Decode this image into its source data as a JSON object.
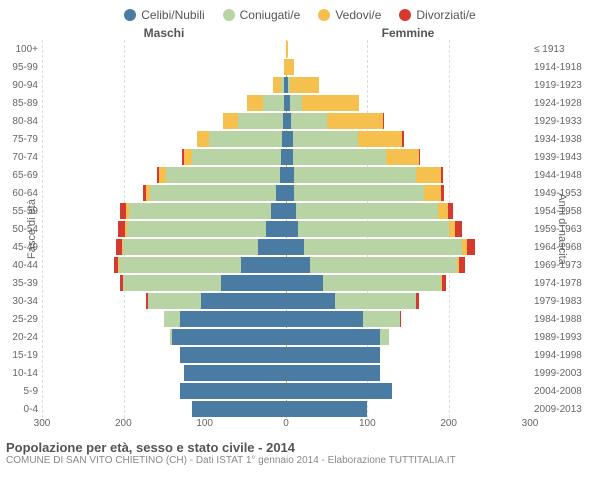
{
  "legend": [
    {
      "label": "Celibi/Nubili",
      "color": "#4a7ca3"
    },
    {
      "label": "Coniugati/e",
      "color": "#b8d4a5"
    },
    {
      "label": "Vedovi/e",
      "color": "#f5c04e"
    },
    {
      "label": "Divorziati/e",
      "color": "#d63a2e"
    }
  ],
  "header": {
    "male": "Maschi",
    "female": "Femmine"
  },
  "axis": {
    "left_label": "Fasce di età",
    "right_label": "Anni di nascita",
    "x_max": 300,
    "x_ticks": [
      300,
      200,
      100,
      0,
      100,
      200,
      300
    ]
  },
  "colors": {
    "celibi": "#4a7ca3",
    "coniugati": "#b8d4a5",
    "vedovi": "#f5c04e",
    "divorziati": "#d63a2e",
    "grid": "#dddddd",
    "center": "#f5a623",
    "bg": "#ffffff"
  },
  "rows": [
    {
      "age": "100+",
      "year": "≤ 1913",
      "m": {
        "c": 0,
        "g": 0,
        "v": 0,
        "d": 0
      },
      "f": {
        "c": 0,
        "g": 0,
        "v": 2,
        "d": 0
      }
    },
    {
      "age": "95-99",
      "year": "1914-1918",
      "m": {
        "c": 0,
        "g": 0,
        "v": 3,
        "d": 0
      },
      "f": {
        "c": 0,
        "g": 0,
        "v": 10,
        "d": 0
      }
    },
    {
      "age": "90-94",
      "year": "1919-1923",
      "m": {
        "c": 2,
        "g": 4,
        "v": 10,
        "d": 0
      },
      "f": {
        "c": 3,
        "g": 2,
        "v": 35,
        "d": 0
      }
    },
    {
      "age": "85-89",
      "year": "1924-1928",
      "m": {
        "c": 3,
        "g": 25,
        "v": 20,
        "d": 0
      },
      "f": {
        "c": 5,
        "g": 15,
        "v": 70,
        "d": 0
      }
    },
    {
      "age": "80-84",
      "year": "1929-1933",
      "m": {
        "c": 4,
        "g": 55,
        "v": 18,
        "d": 0
      },
      "f": {
        "c": 6,
        "g": 45,
        "v": 68,
        "d": 2
      }
    },
    {
      "age": "75-79",
      "year": "1934-1938",
      "m": {
        "c": 5,
        "g": 90,
        "v": 15,
        "d": 0
      },
      "f": {
        "c": 8,
        "g": 80,
        "v": 55,
        "d": 2
      }
    },
    {
      "age": "70-74",
      "year": "1939-1943",
      "m": {
        "c": 6,
        "g": 110,
        "v": 10,
        "d": 2
      },
      "f": {
        "c": 8,
        "g": 115,
        "v": 40,
        "d": 2
      }
    },
    {
      "age": "65-69",
      "year": "1944-1948",
      "m": {
        "c": 8,
        "g": 140,
        "v": 8,
        "d": 3
      },
      "f": {
        "c": 10,
        "g": 150,
        "v": 30,
        "d": 3
      }
    },
    {
      "age": "60-64",
      "year": "1949-1953",
      "m": {
        "c": 12,
        "g": 155,
        "v": 5,
        "d": 4
      },
      "f": {
        "c": 10,
        "g": 160,
        "v": 20,
        "d": 4
      }
    },
    {
      "age": "55-59",
      "year": "1954-1958",
      "m": {
        "c": 18,
        "g": 175,
        "v": 4,
        "d": 7
      },
      "f": {
        "c": 12,
        "g": 175,
        "v": 12,
        "d": 6
      }
    },
    {
      "age": "50-54",
      "year": "1959-1963",
      "m": {
        "c": 25,
        "g": 170,
        "v": 3,
        "d": 8
      },
      "f": {
        "c": 15,
        "g": 185,
        "v": 8,
        "d": 8
      }
    },
    {
      "age": "45-49",
      "year": "1964-1968",
      "m": {
        "c": 35,
        "g": 165,
        "v": 2,
        "d": 7
      },
      "f": {
        "c": 22,
        "g": 195,
        "v": 5,
        "d": 10
      }
    },
    {
      "age": "40-44",
      "year": "1969-1973",
      "m": {
        "c": 55,
        "g": 150,
        "v": 1,
        "d": 6
      },
      "f": {
        "c": 30,
        "g": 180,
        "v": 3,
        "d": 7
      }
    },
    {
      "age": "35-39",
      "year": "1974-1978",
      "m": {
        "c": 80,
        "g": 120,
        "v": 0,
        "d": 4
      },
      "f": {
        "c": 45,
        "g": 145,
        "v": 2,
        "d": 5
      }
    },
    {
      "age": "30-34",
      "year": "1979-1983",
      "m": {
        "c": 105,
        "g": 65,
        "v": 0,
        "d": 2
      },
      "f": {
        "c": 60,
        "g": 100,
        "v": 0,
        "d": 3
      }
    },
    {
      "age": "25-29",
      "year": "1984-1988",
      "m": {
        "c": 130,
        "g": 20,
        "v": 0,
        "d": 0
      },
      "f": {
        "c": 95,
        "g": 45,
        "v": 0,
        "d": 1
      }
    },
    {
      "age": "20-24",
      "year": "1989-1993",
      "m": {
        "c": 140,
        "g": 3,
        "v": 0,
        "d": 0
      },
      "f": {
        "c": 115,
        "g": 12,
        "v": 0,
        "d": 0
      }
    },
    {
      "age": "15-19",
      "year": "1994-1998",
      "m": {
        "c": 130,
        "g": 0,
        "v": 0,
        "d": 0
      },
      "f": {
        "c": 115,
        "g": 0,
        "v": 0,
        "d": 0
      }
    },
    {
      "age": "10-14",
      "year": "1999-2003",
      "m": {
        "c": 125,
        "g": 0,
        "v": 0,
        "d": 0
      },
      "f": {
        "c": 115,
        "g": 0,
        "v": 0,
        "d": 0
      }
    },
    {
      "age": "5-9",
      "year": "2004-2008",
      "m": {
        "c": 130,
        "g": 0,
        "v": 0,
        "d": 0
      },
      "f": {
        "c": 130,
        "g": 0,
        "v": 0,
        "d": 0
      }
    },
    {
      "age": "0-4",
      "year": "2009-2013",
      "m": {
        "c": 115,
        "g": 0,
        "v": 0,
        "d": 0
      },
      "f": {
        "c": 100,
        "g": 0,
        "v": 0,
        "d": 0
      }
    }
  ],
  "footer": {
    "title": "Popolazione per età, sesso e stato civile - 2014",
    "subtitle": "COMUNE DI SAN VITO CHIETINO (CH) - Dati ISTAT 1° gennaio 2014 - Elaborazione TUTTITALIA.IT"
  }
}
